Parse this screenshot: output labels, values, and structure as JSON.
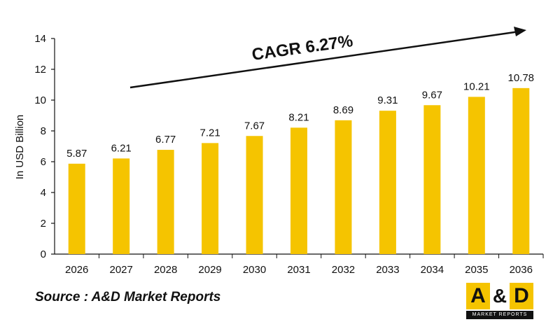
{
  "chart_data": {
    "type": "bar",
    "categories": [
      "2026",
      "2027",
      "2028",
      "2029",
      "2030",
      "2031",
      "2032",
      "2033",
      "2034",
      "2035",
      "2036"
    ],
    "values": [
      5.87,
      6.21,
      6.77,
      7.21,
      7.67,
      8.21,
      8.69,
      9.31,
      9.67,
      10.21,
      10.78
    ],
    "value_labels": [
      "5.87",
      "6.21",
      "6.77",
      "7.21",
      "7.67",
      "8.21",
      "8.69",
      "9.31",
      "9.67",
      "10.21",
      "10.78"
    ],
    "ylabel": "In USD Billion",
    "ylim": [
      0,
      14
    ],
    "yticks": [
      0,
      2,
      4,
      6,
      8,
      10,
      12,
      14
    ],
    "grid": false,
    "bar_color": "#f5c400",
    "annotation": "CAGR 6.27%"
  },
  "source_text": "Source : A&D Market Reports",
  "logo": {
    "letter_a": "A",
    "ampersand": "&",
    "letter_d": "D",
    "subtitle": "MARKET REPORTS",
    "accent_color": "#f5c400"
  }
}
